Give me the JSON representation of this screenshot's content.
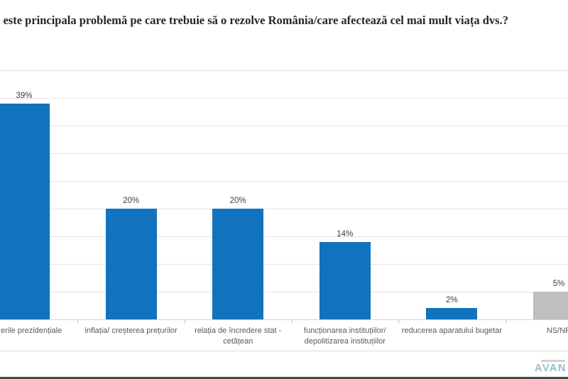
{
  "title": "e este principala problemă pe care trebuie să o rezolve România/care afectează cel mai mult viața dvs.?",
  "chart_data": {
    "type": "bar",
    "title": "e este principala problemă pe care trebuie să o rezolve România/care afectează cel mai mult viața dvs.?",
    "categories": [
      "erile  prezidențiale",
      "inflația/ creșterea prețurilor",
      "relația de încredere stat - cetățean",
      "funcționarea instituțiilor/ depolitizarea instituțiilor",
      "reducerea aparatului bugetar",
      "NS/NR"
    ],
    "category_lines": [
      [
        "erile  prezidențiale"
      ],
      [
        "inflația/ creșterea prețurilor"
      ],
      [
        "relația de încredere stat -",
        "cetățean"
      ],
      [
        "funcționarea instituțiilor/",
        "depolitizarea instituțiilor"
      ],
      [
        "reducerea aparatului bugetar"
      ],
      [
        "NS/NR"
      ]
    ],
    "values": [
      39,
      20,
      20,
      14,
      2,
      5
    ],
    "value_labels": [
      "39%",
      "20%",
      "20%",
      "14%",
      "2%",
      "5%"
    ],
    "bar_colors": [
      "#1173bd",
      "#1173bd",
      "#1173bd",
      "#1173bd",
      "#1173bd",
      "#bfbfbf"
    ],
    "xlabel": "",
    "ylabel": "",
    "ylim": [
      0,
      45
    ],
    "gridline_step_pct": 5,
    "grid": "horizontal",
    "legend": "none"
  },
  "colors": {
    "bar_blue": "#1173bd",
    "bar_gray": "#bfbfbf",
    "logo_teal": "#93bfcc"
  },
  "logo": {
    "text": "AVAN"
  }
}
